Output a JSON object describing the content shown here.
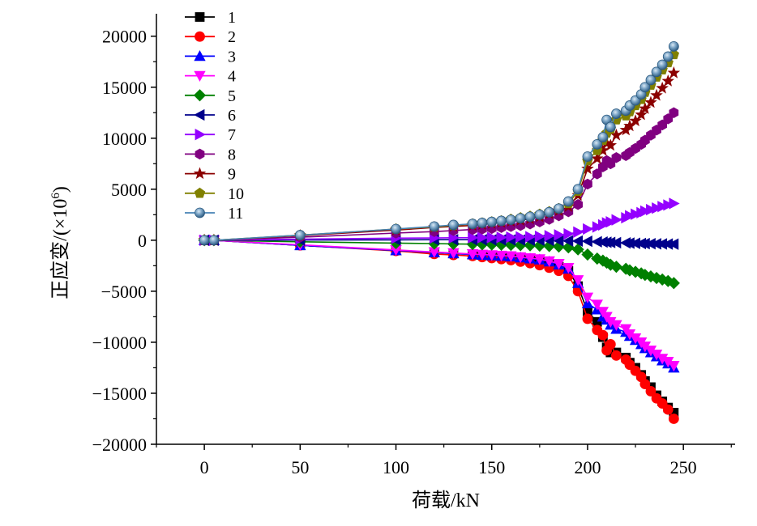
{
  "chart_data": {
    "type": "line",
    "title": "",
    "xlabel": "荷载/kN",
    "ylabel_prefix": "正应变/(×10",
    "ylabel_sup": "6",
    "ylabel_suffix": ")",
    "xlim": [
      -25,
      277
    ],
    "ylim": [
      -20000,
      22200
    ],
    "xticks": [
      0,
      50,
      100,
      150,
      200,
      250
    ],
    "xtick_labels": [
      "0",
      "50",
      "100",
      "150",
      "200",
      "250"
    ],
    "yticks": [
      -20000,
      -15000,
      -10000,
      -5000,
      0,
      5000,
      10000,
      15000,
      20000
    ],
    "ytick_labels": [
      "−20000",
      "−15000",
      "−10000",
      "−5000",
      "0",
      "5000",
      "10000",
      "15000",
      "20000"
    ],
    "legend_position": "top-left",
    "x": [
      0,
      5,
      50,
      100,
      120,
      130,
      140,
      145,
      150,
      155,
      160,
      165,
      170,
      175,
      180,
      185,
      190,
      195,
      200,
      205,
      208,
      210,
      212,
      215,
      220,
      222,
      225,
      228,
      230,
      233,
      236,
      239,
      242,
      245
    ],
    "series": [
      {
        "name": "1",
        "color": "#000000",
        "marker": "square",
        "values": [
          0,
          0,
          -500,
          -1000,
          -1200,
          -1300,
          -1400,
          -1450,
          -1550,
          -1600,
          -1700,
          -1800,
          -1950,
          -2100,
          -2300,
          -2600,
          -3000,
          -4500,
          -7000,
          -8000,
          -9500,
          -10500,
          -11000,
          -11000,
          -11500,
          -12000,
          -12500,
          -13200,
          -13800,
          -14400,
          -15200,
          -15800,
          -16400,
          -16900
        ]
      },
      {
        "name": "2",
        "color": "#ff0000",
        "marker": "circle",
        "values": [
          0,
          0,
          -500,
          -1050,
          -1350,
          -1450,
          -1550,
          -1650,
          -1750,
          -1850,
          -1950,
          -2100,
          -2250,
          -2450,
          -2700,
          -3000,
          -3500,
          -5000,
          -7700,
          -8800,
          -9300,
          -10800,
          -10200,
          -11300,
          -11700,
          -12200,
          -12800,
          -13400,
          -14100,
          -14800,
          -15500,
          -16000,
          -16600,
          -17500
        ]
      },
      {
        "name": "3",
        "color": "#0000ff",
        "marker": "triangle-up",
        "values": [
          0,
          0,
          -500,
          -1000,
          -1200,
          -1300,
          -1400,
          -1450,
          -1500,
          -1550,
          -1600,
          -1700,
          -1800,
          -1900,
          -2100,
          -2400,
          -2800,
          -4200,
          -6200,
          -6800,
          -7500,
          -7800,
          -8300,
          -8700,
          -9000,
          -9400,
          -9800,
          -10200,
          -10600,
          -11000,
          -11400,
          -11800,
          -12100,
          -12500
        ]
      },
      {
        "name": "4",
        "color": "#ff00ff",
        "marker": "triangle-down",
        "values": [
          0,
          0,
          -450,
          -950,
          -1150,
          -1250,
          -1350,
          -1400,
          -1450,
          -1500,
          -1550,
          -1650,
          -1750,
          -1850,
          -2050,
          -2300,
          -2700,
          -3900,
          -5600,
          -6300,
          -7000,
          -7500,
          -8000,
          -8300,
          -8700,
          -9200,
          -9600,
          -10000,
          -10400,
          -10800,
          -11200,
          -11600,
          -11900,
          -12300
        ]
      },
      {
        "name": "5",
        "color": "#008000",
        "marker": "diamond",
        "values": [
          0,
          0,
          -150,
          -280,
          -330,
          -360,
          -380,
          -400,
          -420,
          -440,
          -460,
          -480,
          -500,
          -530,
          -570,
          -620,
          -700,
          -900,
          -1400,
          -1800,
          -2000,
          -2200,
          -2400,
          -2600,
          -2800,
          -2950,
          -3100,
          -3250,
          -3400,
          -3550,
          -3700,
          -3850,
          -4000,
          -4200
        ]
      },
      {
        "name": "6",
        "color": "#00008b",
        "marker": "triangle-left",
        "values": [
          0,
          0,
          20,
          40,
          50,
          50,
          50,
          50,
          40,
          40,
          30,
          20,
          0,
          0,
          -20,
          -40,
          -60,
          -80,
          -100,
          -150,
          -180,
          -200,
          -220,
          -240,
          -260,
          -280,
          -300,
          -320,
          -330,
          -340,
          -350,
          -360,
          -370,
          -380
        ]
      },
      {
        "name": "7",
        "color": "#9400ff",
        "marker": "triangle-right",
        "values": [
          0,
          0,
          100,
          200,
          220,
          240,
          250,
          260,
          270,
          280,
          300,
          320,
          340,
          380,
          440,
          520,
          620,
          800,
          1100,
          1300,
          1500,
          1700,
          1800,
          2000,
          2200,
          2400,
          2550,
          2700,
          2850,
          3000,
          3150,
          3300,
          3450,
          3600
        ]
      },
      {
        "name": "8",
        "color": "#800080",
        "marker": "hexagon",
        "values": [
          0,
          0,
          300,
          700,
          850,
          950,
          1050,
          1100,
          1150,
          1250,
          1350,
          1450,
          1600,
          1800,
          2050,
          2400,
          2800,
          3500,
          5500,
          6500,
          7200,
          7800,
          7500,
          8100,
          8300,
          8600,
          9000,
          9400,
          9800,
          10300,
          10800,
          11300,
          11900,
          12500
        ]
      },
      {
        "name": "9",
        "color": "#8b0000",
        "marker": "star",
        "values": [
          0,
          0,
          450,
          1000,
          1250,
          1350,
          1450,
          1550,
          1650,
          1750,
          1850,
          1950,
          2100,
          2300,
          2600,
          2900,
          3300,
          4400,
          7000,
          8000,
          8800,
          9500,
          9300,
          10300,
          10800,
          11200,
          11700,
          12300,
          12900,
          13500,
          14200,
          14900,
          15600,
          16400
        ]
      },
      {
        "name": "10",
        "color": "#808000",
        "marker": "pentagon",
        "values": [
          0,
          0,
          500,
          1100,
          1300,
          1450,
          1600,
          1700,
          1800,
          1900,
          2050,
          2200,
          2350,
          2550,
          2800,
          3100,
          3600,
          4800,
          7800,
          8800,
          9800,
          10500,
          10900,
          11800,
          12200,
          12600,
          13200,
          13800,
          14500,
          15200,
          16000,
          16700,
          17400,
          18200
        ]
      },
      {
        "name": "11",
        "color": "#4682b4",
        "marker": "sphere",
        "values": [
          0,
          0,
          500,
          1100,
          1350,
          1500,
          1600,
          1700,
          1800,
          1900,
          2000,
          2150,
          2300,
          2500,
          2750,
          3100,
          3800,
          5000,
          8200,
          9400,
          10100,
          11800,
          11100,
          12400,
          12700,
          13200,
          13700,
          14300,
          15000,
          15700,
          16500,
          17200,
          18000,
          19000
        ]
      }
    ]
  }
}
